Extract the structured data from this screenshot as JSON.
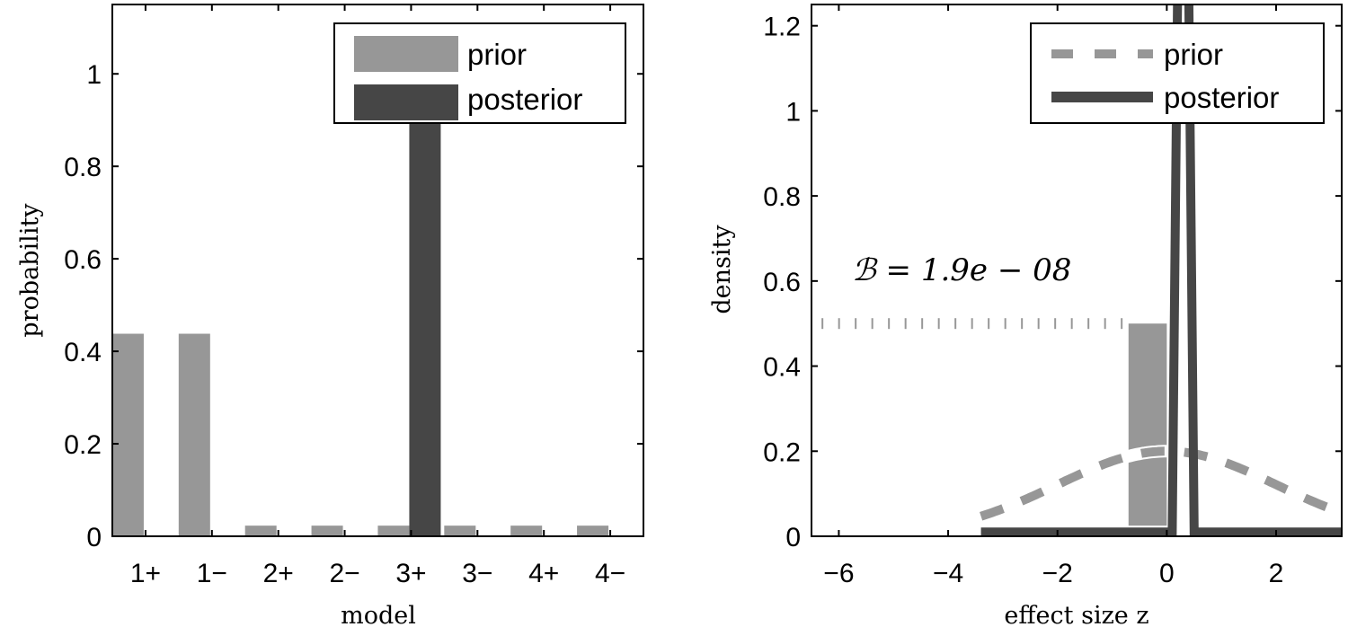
{
  "chart_data": [
    {
      "type": "bar",
      "title": "",
      "xlabel": "model",
      "ylabel": "probability",
      "categories": [
        "1+",
        "1−",
        "2+",
        "2−",
        "3+",
        "3−",
        "4+",
        "4−"
      ],
      "series": [
        {
          "name": "prior",
          "color": "#979797",
          "values": [
            0.438,
            0.438,
            0.023,
            0.023,
            0.023,
            0.023,
            0.023,
            0.023
          ]
        },
        {
          "name": "posterior",
          "color": "#464646",
          "values": [
            0,
            0,
            0,
            0,
            0.98,
            0,
            0,
            0
          ]
        }
      ],
      "ylim": [
        0,
        1.15
      ],
      "yticks": [
        0,
        0.2,
        0.4,
        0.6,
        0.8,
        1
      ],
      "ytick_labels": [
        "0",
        "0.2",
        "0.4",
        "0.6",
        "0.8",
        "1"
      ],
      "grid": false,
      "legend": {
        "position": "upper right",
        "entries": [
          "prior",
          "posterior"
        ]
      }
    },
    {
      "type": "line",
      "title": "",
      "xlabel": "effect size z",
      "ylabel": "density",
      "xlim": [
        -6.5,
        3.2
      ],
      "ylim": [
        0,
        1.25
      ],
      "xticks": [
        -6,
        -4,
        -2,
        0,
        2
      ],
      "xtick_labels": [
        "−6",
        "−4",
        "−2",
        "0",
        "2"
      ],
      "yticks": [
        0,
        0.2,
        0.4,
        0.6,
        0.8,
        1,
        1.2
      ],
      "ytick_labels": [
        "0",
        "0.2",
        "0.4",
        "0.6",
        "0.8",
        "1",
        "1.2"
      ],
      "series": [
        {
          "name": "prior",
          "style": "dashed",
          "color": "#979797",
          "distribution": "normal",
          "mean": 0,
          "sd": 2,
          "peak": 0.2,
          "x": [
            -3.4,
            -3,
            -2.5,
            -2,
            -1.5,
            -1,
            -0.5,
            0,
            0.5,
            1,
            1.5,
            2,
            2.5,
            3,
            3.2
          ],
          "y": [
            0.047,
            0.065,
            0.091,
            0.121,
            0.151,
            0.176,
            0.194,
            0.2,
            0.194,
            0.176,
            0.151,
            0.121,
            0.091,
            0.065,
            0.057
          ]
        },
        {
          "name": "posterior",
          "style": "solid",
          "color": "#464646",
          "x": [
            -3.4,
            0.1,
            0.2,
            0.3,
            0.4,
            0.5,
            3.2
          ],
          "y": [
            0.01,
            0.01,
            1.3,
            1.3,
            1.3,
            0.01,
            0.01
          ]
        }
      ],
      "prior_mass_bar": {
        "x_from": -0.7,
        "x_to": 0.0,
        "height": 0.5,
        "color": "#979797"
      },
      "reference_line": {
        "y": 0.5,
        "x_from": -6.3,
        "x_to": -0.7,
        "style": "dotted"
      },
      "annotation": {
        "text": "𝓑 = 1.9e − 08",
        "x": -5.2,
        "y": 0.58
      },
      "grid": false,
      "legend": {
        "position": "upper right",
        "entries": [
          "prior",
          "posterior"
        ]
      }
    }
  ],
  "left": {
    "ylabel": "probability",
    "xlabel": "model",
    "legend": {
      "prior": "prior",
      "posterior": "posterior"
    }
  },
  "right": {
    "ylabel": "density",
    "xlabel": "effect size z",
    "annotation": "ℬ = 1.9e − 08",
    "legend": {
      "prior": "prior",
      "posterior": "posterior"
    }
  }
}
